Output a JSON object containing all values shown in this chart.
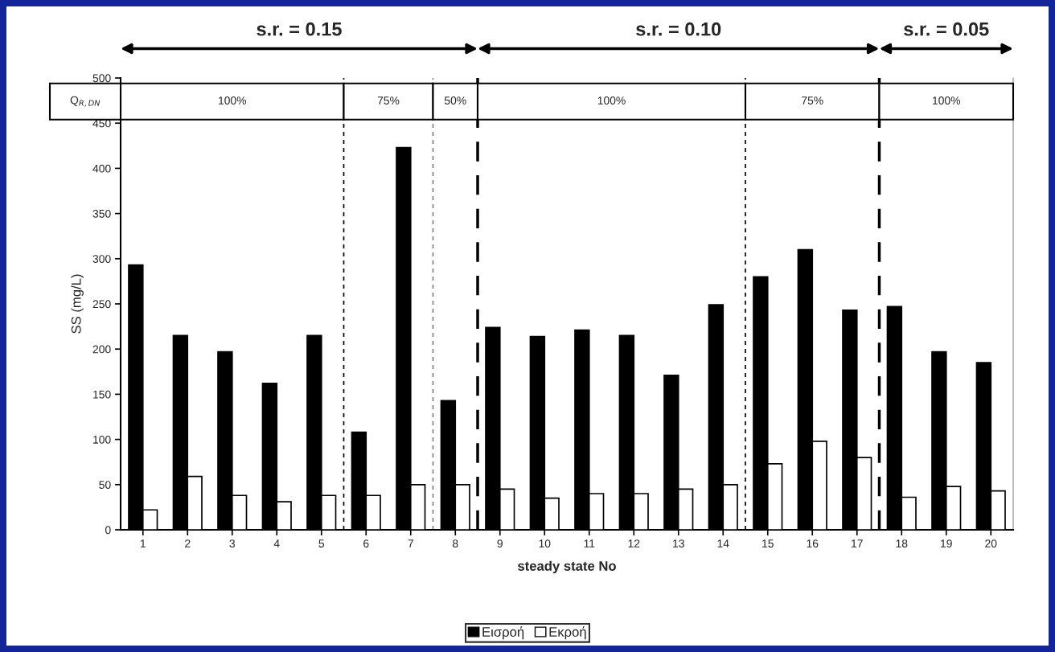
{
  "chart_data": {
    "type": "bar",
    "xlabel": "steady state No",
    "ylabel": "SS (mg/L)",
    "x": [
      1,
      2,
      3,
      4,
      5,
      6,
      7,
      8,
      9,
      10,
      11,
      12,
      13,
      14,
      15,
      16,
      17,
      18,
      19,
      20
    ],
    "xlim": [
      0.5,
      20.5
    ],
    "xticks": [
      1,
      2,
      3,
      4,
      5,
      6,
      7,
      8,
      9,
      10,
      11,
      12,
      13,
      14,
      15,
      16,
      17,
      18,
      19,
      20
    ],
    "ylim": [
      0,
      500
    ],
    "yticks": [
      0,
      50,
      100,
      150,
      200,
      250,
      300,
      350,
      400,
      450,
      500
    ],
    "series": [
      {
        "name": "Εισροή",
        "color": "#000000",
        "values": [
          293,
          215,
          197,
          162,
          215,
          108,
          423,
          143,
          224,
          214,
          221,
          215,
          171,
          249,
          280,
          310,
          243,
          247,
          197,
          185
        ]
      },
      {
        "name": "Εκροή",
        "color": "#ffffff",
        "values": [
          22,
          59,
          38,
          31,
          38,
          38,
          50,
          50,
          45,
          35,
          40,
          40,
          45,
          50,
          73,
          98,
          80,
          36,
          48,
          43
        ]
      }
    ],
    "ref_lines": [
      {
        "axis": "x",
        "value": 5.5,
        "color": "#000000",
        "line_style": "dotted"
      },
      {
        "axis": "x",
        "value": 7.5,
        "color": "#808080",
        "line_style": "dotted"
      },
      {
        "axis": "x",
        "value": 8.5,
        "color": "#000000",
        "line_style": "dashed"
      },
      {
        "axis": "x",
        "value": 14.5,
        "color": "#000000",
        "line_style": "dotted"
      },
      {
        "axis": "x",
        "value": 17.5,
        "color": "#000000",
        "line_style": "dashed"
      }
    ],
    "annotations": [
      "Q$_{R,DN}$",
      "s.r. = 0.15",
      "s.r. = 0.10",
      "s.r. = 0.05",
      "100%",
      "75%",
      "50%",
      "100%",
      "75%",
      "100%"
    ],
    "legend": "bottom",
    "grid": false
  }
}
